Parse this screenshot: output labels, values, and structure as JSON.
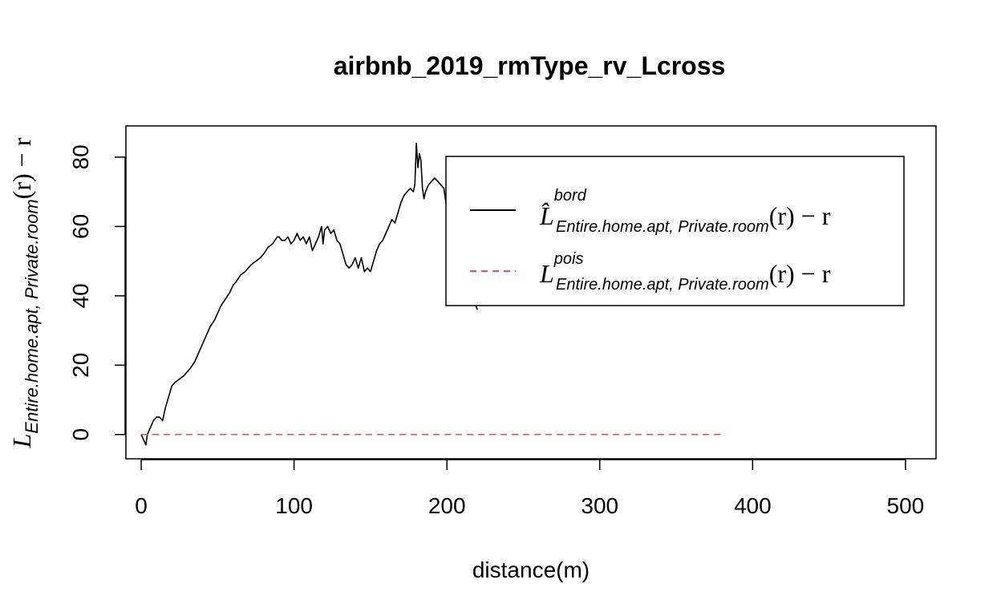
{
  "chart_data": {
    "type": "line",
    "title": "airbnb_2019_rmType_rv_Lcross",
    "xlabel": "distance(m)",
    "ylabel": {
      "main": "L",
      "sub": "Entire.home.apt, Private.room",
      "tail": "(r) − r"
    },
    "xlim": [
      -10,
      520
    ],
    "ylim": [
      -7,
      89
    ],
    "xticks": [
      0,
      100,
      200,
      300,
      400,
      500
    ],
    "yticks": [
      0,
      20,
      40,
      60,
      80
    ],
    "grid": false,
    "legend_position": "top-right",
    "series": [
      {
        "key": "bord",
        "color": "#000000",
        "dash": "solid",
        "legend": {
          "main": "L̂",
          "sup": "bord",
          "sub": "Entire.home.apt, Private.room",
          "tail": "(r) − r"
        },
        "x": [
          0,
          2,
          3,
          4,
          5,
          6,
          7,
          8,
          10,
          12,
          14,
          16,
          18,
          20,
          22,
          25,
          28,
          30,
          32,
          35,
          38,
          40,
          42,
          45,
          48,
          50,
          52,
          55,
          58,
          60,
          62,
          65,
          68,
          70,
          72,
          75,
          78,
          80,
          83,
          86,
          89,
          90,
          92,
          94,
          96,
          98,
          100,
          102,
          104,
          106,
          108,
          110,
          112,
          114,
          116,
          118,
          119,
          120,
          122,
          124,
          126,
          128,
          130,
          132,
          134,
          136,
          138,
          140,
          142,
          144,
          146,
          148,
          150,
          152,
          154,
          156,
          158,
          160,
          162,
          164,
          166,
          168,
          170,
          172,
          174,
          176,
          178,
          179,
          180,
          181,
          182,
          183,
          184,
          185,
          186,
          188,
          190,
          192,
          194,
          196,
          198,
          200,
          201,
          202,
          204,
          206,
          208,
          210,
          212,
          214,
          216,
          218,
          220
        ],
        "y": [
          0,
          -2,
          -3,
          0,
          1,
          2,
          3,
          4,
          5,
          5,
          4,
          8,
          11,
          14,
          15,
          16,
          17,
          18,
          19,
          21,
          24,
          26,
          28,
          31,
          33,
          35,
          37,
          39,
          41,
          43,
          44,
          46,
          47,
          48,
          49,
          50,
          51,
          52,
          54,
          55,
          57,
          57,
          56,
          56,
          57,
          55,
          56,
          58,
          56,
          57,
          55,
          57,
          53,
          55,
          57,
          60,
          55,
          59,
          60,
          58,
          59,
          56,
          55,
          52,
          49,
          48,
          49,
          51,
          48,
          51,
          47,
          48,
          47,
          50,
          53,
          55,
          56,
          58,
          60,
          62,
          61,
          64,
          67,
          69,
          70,
          71,
          70,
          72,
          84,
          77,
          81,
          79,
          71,
          68,
          70,
          72,
          73,
          74,
          73,
          72,
          71,
          65,
          63,
          60,
          55,
          50,
          48,
          46,
          44,
          42,
          40,
          38,
          36
        ]
      },
      {
        "key": "pois",
        "color": "#df536b",
        "dash": "dashed",
        "legend": {
          "main": "L",
          "sup": "pois",
          "sub": "Entire.home.apt, Private.room",
          "tail": "(r) − r"
        },
        "x": [
          0,
          380
        ],
        "y": [
          0,
          0
        ]
      }
    ]
  }
}
